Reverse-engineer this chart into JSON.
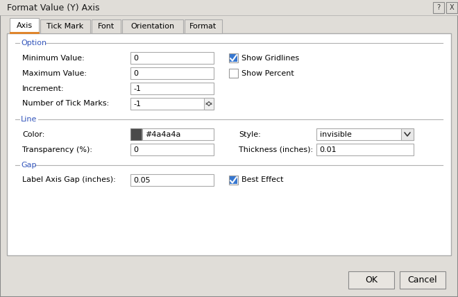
{
  "title": "Format Value (Y) Axis",
  "bg_color": "#e0ddd8",
  "content_bg": "#ffffff",
  "tab_active": "Axis",
  "tabs": [
    "Axis",
    "Tick Mark",
    "Font",
    "Orientation",
    "Format"
  ],
  "tab_active_color": "#ffffff",
  "tab_inactive_color": "#e0ddd8",
  "section_label_color": "#3355bb",
  "checkbox_color": "#3777d0",
  "button_labels": [
    "OK",
    "Cancel"
  ],
  "input_bg": "#ffffff",
  "input_border": "#aaaaaa",
  "panel_border": "#aaaaaa",
  "titlebar_bg": "#e0ddd8",
  "titlebar_text": "#000000",
  "label_color": "#000000",
  "tab_text_color": "#000000",
  "section_line_color": "#b0b0b0",
  "spinner_bg": "#f0f0f0",
  "dropdown_arrow_bg": "#e0ddd8",
  "color_swatch": "#4a4a4a",
  "color_hex_text": "#4a4a4a",
  "tab_orange_line": "#e08020",
  "help_btn_color": "#888888",
  "btn_bg": "#e8e5e0",
  "btn_border": "#888888"
}
